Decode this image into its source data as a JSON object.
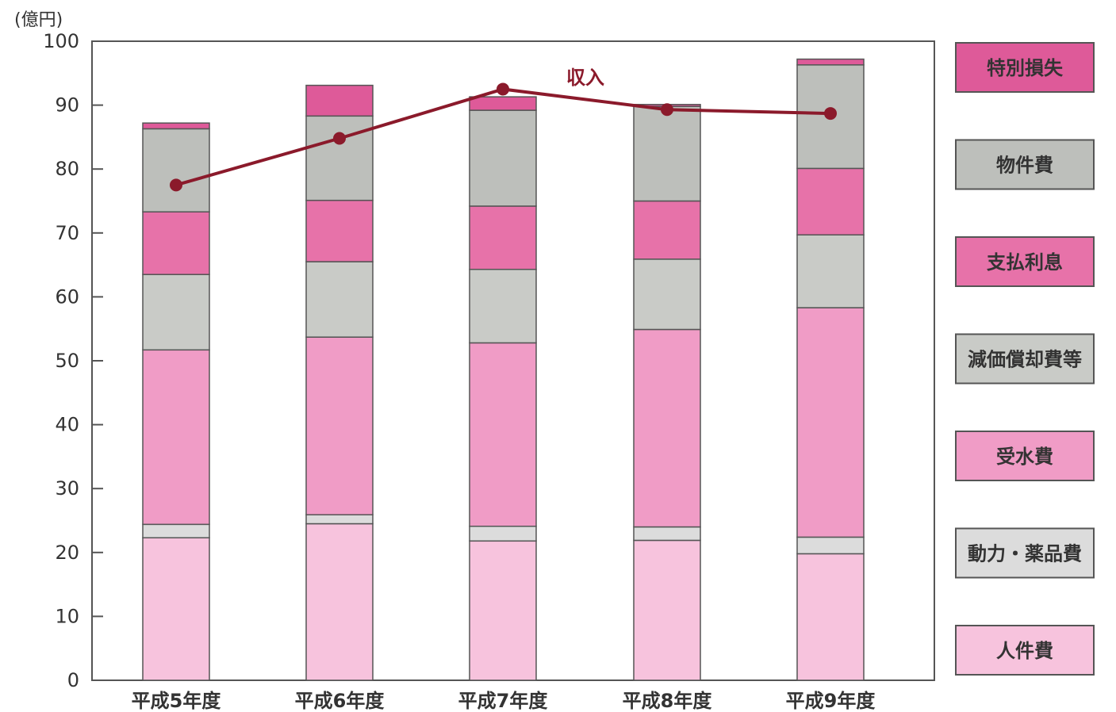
{
  "chart_data": {
    "type": "bar",
    "stacked": true,
    "unit_label": "(億円)",
    "categories": [
      "平成5年度",
      "平成6年度",
      "平成7年度",
      "平成8年度",
      "平成9年度"
    ],
    "ylim": [
      0,
      100
    ],
    "yticks": [
      0,
      10,
      20,
      30,
      40,
      50,
      60,
      70,
      80,
      90,
      100
    ],
    "grid": false,
    "legend_position": "right",
    "series": [
      {
        "name": "人件費",
        "values": [
          22.3,
          24.5,
          21.8,
          21.9,
          19.8
        ],
        "color": "#f7c3dd"
      },
      {
        "name": "動力・薬品費",
        "values": [
          2.1,
          1.4,
          2.3,
          2.1,
          2.6
        ],
        "color": "#dcdcdc"
      },
      {
        "name": "受水費",
        "values": [
          27.3,
          27.8,
          28.7,
          30.9,
          35.9
        ],
        "color": "#f09cc6"
      },
      {
        "name": "減価償却費等",
        "values": [
          11.8,
          11.8,
          11.5,
          11.0,
          11.4
        ],
        "color": "#c9cbc7"
      },
      {
        "name": "支払利息",
        "values": [
          9.8,
          9.6,
          9.9,
          9.1,
          10.4
        ],
        "color": "#e772a9"
      },
      {
        "name": "物件費",
        "values": [
          13.0,
          13.2,
          15.0,
          14.8,
          16.2
        ],
        "color": "#bdbfbb"
      },
      {
        "name": "特別損失",
        "values": [
          0.9,
          4.8,
          2.1,
          0.3,
          0.9
        ],
        "color": "#de5a99"
      }
    ],
    "line_series": {
      "name": "収入",
      "values": [
        77.5,
        84.8,
        92.5,
        89.3,
        88.7
      ],
      "color": "#8b1a2b"
    }
  }
}
